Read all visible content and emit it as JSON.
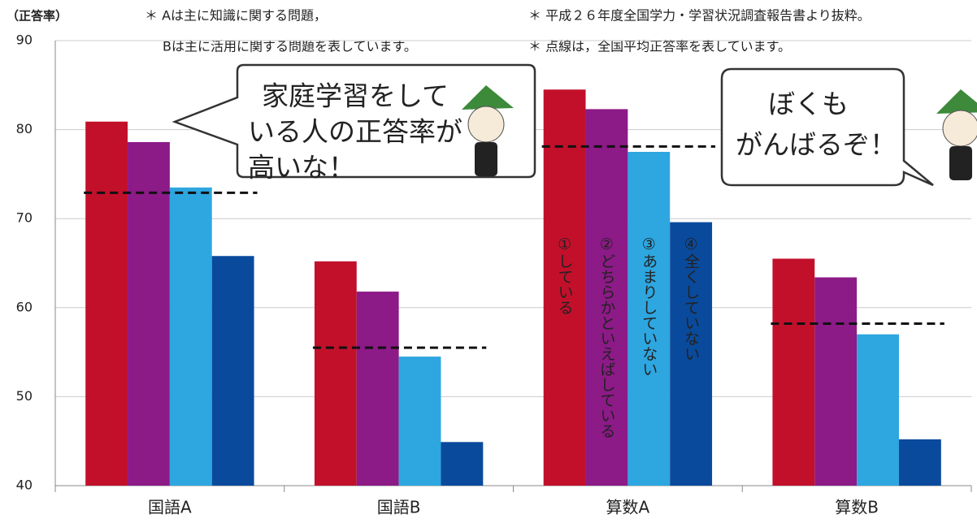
{
  "chart_data": {
    "type": "bar",
    "y_label": "（正答率）",
    "notes": [
      "＊ Aは主に知識に関する問題，",
      "Bは主に活用に関する問題を表しています。",
      "＊ 平成２６年度全国学力・学習状況調査報告書より抜粋。",
      "＊ 点線は，全国平均正答率を表しています。"
    ],
    "categories": [
      "国語A",
      "国語B",
      "算数A",
      "算数B"
    ],
    "series": [
      {
        "name": "①している",
        "color": "#c2102b",
        "values": [
          80.9,
          65.2,
          84.5,
          65.5
        ]
      },
      {
        "name": "②どちらかといえばしている",
        "color": "#8c1a87",
        "values": [
          78.6,
          61.8,
          82.3,
          63.4
        ]
      },
      {
        "name": "③あまりしていない",
        "color": "#2ea6e0",
        "values": [
          73.5,
          54.5,
          77.5,
          57.0
        ]
      },
      {
        "name": "④全くしていない",
        "color": "#0a4a9c",
        "values": [
          65.8,
          44.9,
          69.6,
          45.2
        ]
      }
    ],
    "national_average": [
      72.9,
      55.5,
      78.1,
      58.2
    ],
    "ylim": [
      40,
      90
    ],
    "yticks": [
      40,
      50,
      60,
      70,
      80,
      90
    ],
    "grid": true,
    "bubbles": [
      {
        "lines": [
          "家庭学習をして",
          "いる人の正答率が",
          "高いな！"
        ]
      },
      {
        "lines": [
          "ぼくも",
          "がんばるぞ！"
        ]
      }
    ]
  }
}
